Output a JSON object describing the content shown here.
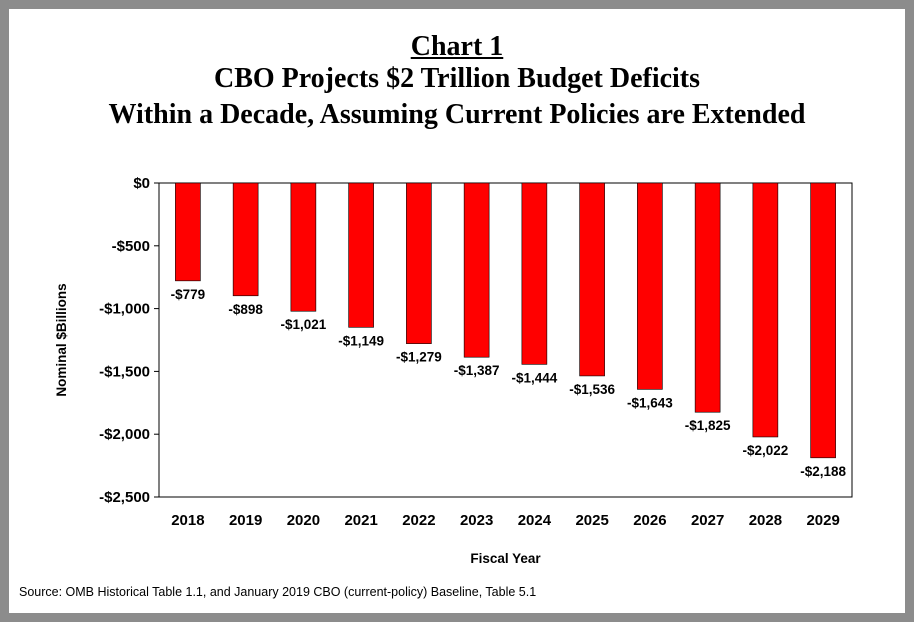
{
  "chart_data": {
    "type": "bar",
    "title_line1": "Chart 1",
    "title_line2": "CBO Projects $2 Trillion Budget Deficits",
    "title_line3": "Within a Decade, Assuming Current Policies are Extended",
    "xlabel": "Fiscal Year",
    "ylabel": "Nominal $Billions",
    "categories": [
      "2018",
      "2019",
      "2020",
      "2021",
      "2022",
      "2023",
      "2024",
      "2025",
      "2026",
      "2027",
      "2028",
      "2029"
    ],
    "values": [
      -779,
      -898,
      -1021,
      -1149,
      -1279,
      -1387,
      -1444,
      -1536,
      -1643,
      -1825,
      -2022,
      -2188
    ],
    "data_labels": [
      "-$779",
      "-$898",
      "-$1,021",
      "-$1,149",
      "-$1,279",
      "-$1,387",
      "-$1,444",
      "-$1,536",
      "-$1,643",
      "-$1,825",
      "-$2,022",
      "-$2,188"
    ],
    "yticks": [
      0,
      -500,
      -1000,
      -1500,
      -2000,
      -2500
    ],
    "ytick_labels": [
      "$0",
      "-$500",
      "-$1,000",
      "-$1,500",
      "-$2,000",
      "-$2,500"
    ],
    "ylim": [
      -2500,
      0
    ],
    "grid": false,
    "bar_color": "#ff0000",
    "bar_edge_color": "#000000"
  },
  "source": "Source: OMB Historical Table 1.1, and January 2019 CBO (current-policy) Baseline, Table 5.1"
}
